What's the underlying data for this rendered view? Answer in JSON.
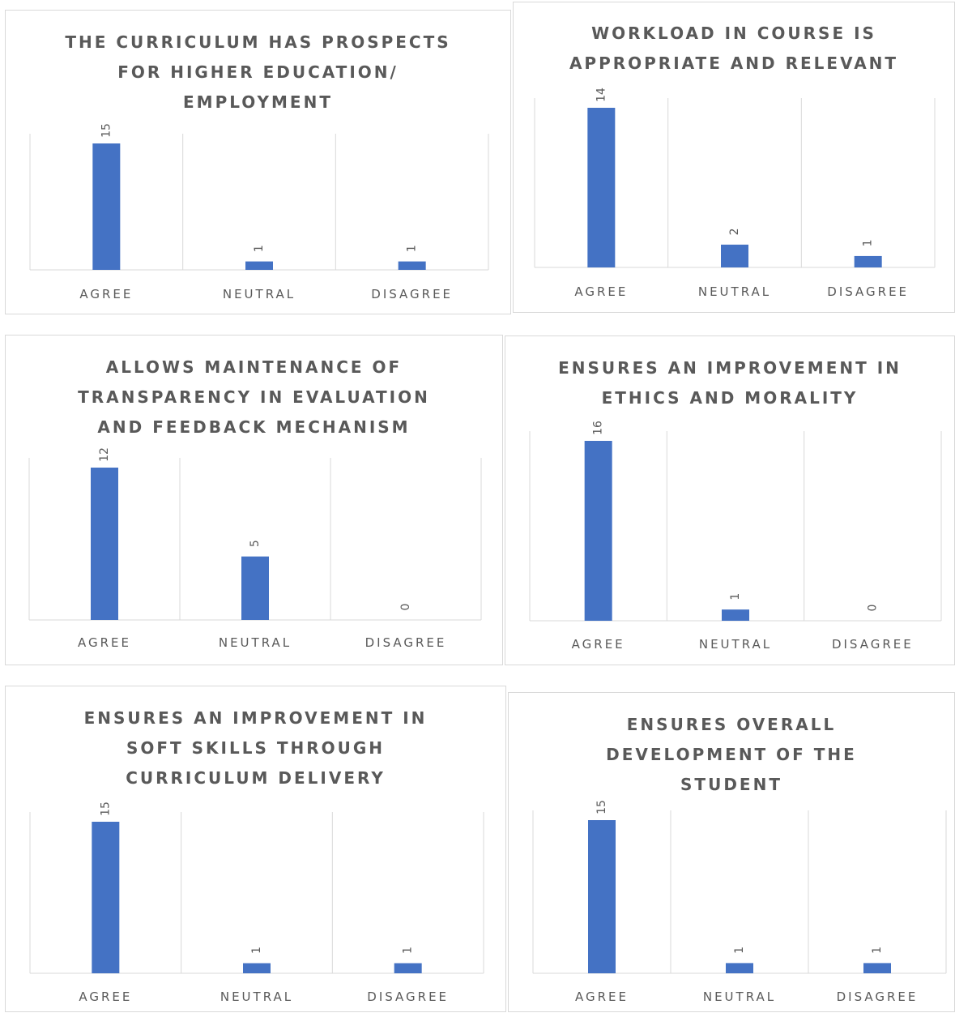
{
  "chart_data": [
    {
      "type": "bar",
      "title_lines": [
        "THE CURRICULUM HAS PROSPECTS",
        "FOR HIGHER EDUCATION/",
        "EMPLOYMENT"
      ],
      "categories": [
        "AGREE",
        "NEUTRAL",
        "DISAGREE"
      ],
      "values": [
        15,
        1,
        1
      ],
      "bar_color": "#4472c4",
      "grid": false
    },
    {
      "type": "bar",
      "title_lines": [
        "WORKLOAD IN COURSE IS",
        "APPROPRIATE AND RELEVANT"
      ],
      "categories": [
        "AGREE",
        "NEUTRAL",
        "DISAGREE"
      ],
      "values": [
        14,
        2,
        1
      ],
      "bar_color": "#4472c4",
      "grid": false
    },
    {
      "type": "bar",
      "title_lines": [
        "ALLOWS MAINTENANCE OF",
        "TRANSPARENCY IN EVALUATION",
        "AND FEEDBACK MECHANISM"
      ],
      "categories": [
        "AGREE",
        "NEUTRAL",
        "DISAGREE"
      ],
      "values": [
        12,
        5,
        0
      ],
      "bar_color": "#4472c4",
      "grid": false
    },
    {
      "type": "bar",
      "title_lines": [
        "ENSURES AN IMPROVEMENT IN",
        "ETHICS AND MORALITY"
      ],
      "categories": [
        "AGREE",
        "NEUTRAL",
        "DISAGREE"
      ],
      "values": [
        16,
        1,
        0
      ],
      "bar_color": "#4472c4",
      "grid": false
    },
    {
      "type": "bar",
      "title_lines": [
        "ENSURES AN IMPROVEMENT IN",
        "SOFT SKILLS THROUGH",
        "CURRICULUM DELIVERY"
      ],
      "categories": [
        "AGREE",
        "NEUTRAL",
        "DISAGREE"
      ],
      "values": [
        15,
        1,
        1
      ],
      "bar_color": "#4472c4",
      "grid": false
    },
    {
      "type": "bar",
      "title_lines": [
        "ENSURES OVERALL",
        "DEVELOPMENT OF THE",
        "STUDENT"
      ],
      "categories": [
        "AGREE",
        "NEUTRAL",
        "DISAGREE"
      ],
      "values": [
        15,
        1,
        1
      ],
      "bar_color": "#4472c4",
      "grid": false
    }
  ]
}
